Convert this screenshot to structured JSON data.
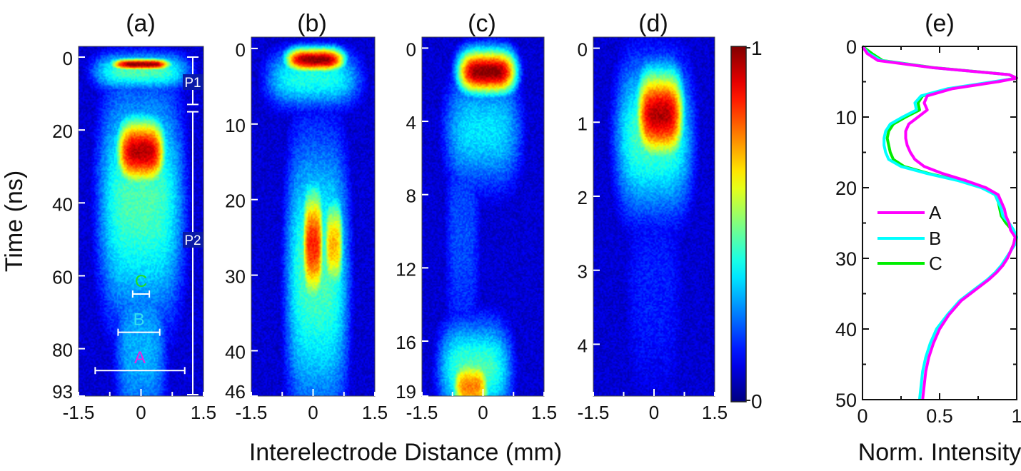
{
  "chart_data": [
    {
      "id": "a",
      "type": "heatmap",
      "panel_label": "(a)",
      "xlabel": "Interelectrode Distance (mm)",
      "ylabel": "Time (ns)",
      "xlim": [
        -1.5,
        1.5
      ],
      "ylim": [
        0,
        93
      ],
      "x_ticks": [
        "-1.5",
        "0",
        "1.5"
      ],
      "y_ticks": [
        {
          "value": 0,
          "label": "0"
        },
        {
          "value": 20,
          "label": "20"
        },
        {
          "value": 40,
          "label": "40"
        },
        {
          "value": 60,
          "label": "60"
        },
        {
          "value": 80,
          "label": "80"
        },
        {
          "value": 93,
          "label": "93"
        }
      ],
      "blobs": [
        {
          "x": 0.0,
          "y": 2,
          "sx": 0.55,
          "sy": 1.2,
          "v": 1.0
        },
        {
          "x": 0.0,
          "y": 4,
          "sx": 0.9,
          "sy": 4,
          "v": 0.45
        },
        {
          "x": 0.0,
          "y": 26,
          "sx": 0.45,
          "sy": 7,
          "v": 0.95
        },
        {
          "x": 0.0,
          "y": 40,
          "sx": 0.8,
          "sy": 25,
          "v": 0.45
        },
        {
          "x": 0.0,
          "y": 80,
          "sx": 0.5,
          "sy": 20,
          "v": 0.3
        }
      ],
      "phase_markers": [
        {
          "label": "P1",
          "t_start": 0,
          "t_end": 13
        },
        {
          "label": "P2",
          "t_start": 15,
          "t_end": 93
        }
      ],
      "regions": [
        {
          "label": "C",
          "x_start": -0.2,
          "x_end": 0.2,
          "t": 65,
          "color": "#22dd22"
        },
        {
          "label": "B",
          "x_start": -0.55,
          "x_end": 0.45,
          "t": 75.5,
          "color": "#33e0f0"
        },
        {
          "label": "A",
          "x_start": -1.1,
          "x_end": 1.05,
          "t": 86,
          "color": "#ee22dd"
        }
      ]
    },
    {
      "id": "b",
      "type": "heatmap",
      "panel_label": "(b)",
      "xlim": [
        -1.5,
        1.5
      ],
      "ylim": [
        -1.5,
        46
      ],
      "x_ticks": [
        "-1.5",
        "0",
        "1.5"
      ],
      "y_ticks": [
        {
          "value": 0,
          "label": "0"
        },
        {
          "value": 10,
          "label": "10"
        },
        {
          "value": 20,
          "label": "20"
        },
        {
          "value": 30,
          "label": "30"
        },
        {
          "value": 40,
          "label": "40"
        },
        {
          "value": 46,
          "label": "46"
        }
      ],
      "blobs": [
        {
          "x": 0.05,
          "y": 1.5,
          "sx": 0.55,
          "sy": 1.2,
          "v": 1.0
        },
        {
          "x": 0.0,
          "y": 4,
          "sx": 0.9,
          "sy": 3,
          "v": 0.4
        },
        {
          "x": 0.0,
          "y": 26,
          "sx": 0.2,
          "sy": 6,
          "v": 0.85
        },
        {
          "x": 0.5,
          "y": 26,
          "sx": 0.18,
          "sy": 5,
          "v": 0.7
        },
        {
          "x": 0.1,
          "y": 30,
          "sx": 0.6,
          "sy": 14,
          "v": 0.45
        }
      ]
    },
    {
      "id": "c",
      "type": "heatmap",
      "panel_label": "(c)",
      "xlim": [
        -1.5,
        1.5
      ],
      "ylim": [
        -0.6,
        19
      ],
      "x_ticks": [
        "-1.5",
        "0",
        "1.5"
      ],
      "y_ticks": [
        {
          "value": 0,
          "label": "0"
        },
        {
          "value": 4,
          "label": "4"
        },
        {
          "value": 8,
          "label": "8"
        },
        {
          "value": 12,
          "label": "12"
        },
        {
          "value": 16,
          "label": "16"
        },
        {
          "value": 19,
          "label": "19"
        }
      ],
      "blobs": [
        {
          "x": 0.1,
          "y": 1.3,
          "sx": 0.55,
          "sy": 0.9,
          "v": 1.0
        },
        {
          "x": 0.0,
          "y": 4.5,
          "sx": 0.75,
          "sy": 2.5,
          "v": 0.35
        },
        {
          "x": -0.3,
          "y": 18.5,
          "sx": 0.35,
          "sy": 1.2,
          "v": 0.75
        },
        {
          "x": -0.2,
          "y": 17.5,
          "sx": 0.7,
          "sy": 2,
          "v": 0.45
        },
        {
          "x": -0.5,
          "y": 10,
          "sx": 0.35,
          "sy": 6,
          "v": 0.2
        }
      ]
    },
    {
      "id": "d",
      "type": "heatmap",
      "panel_label": "(d)",
      "xlim": [
        -1.5,
        1.5
      ],
      "ylim": [
        -0.15,
        4.7
      ],
      "x_ticks": [
        "-1.5",
        "0",
        "1.5"
      ],
      "y_ticks": [
        {
          "value": 0,
          "label": "0"
        },
        {
          "value": 1,
          "label": "1"
        },
        {
          "value": 2,
          "label": "2"
        },
        {
          "value": 3,
          "label": "3"
        },
        {
          "value": 4,
          "label": "4"
        }
      ],
      "blobs": [
        {
          "x": 0.15,
          "y": 0.9,
          "sx": 0.45,
          "sy": 0.45,
          "v": 0.95
        },
        {
          "x": 0.0,
          "y": 1.2,
          "sx": 0.75,
          "sy": 0.8,
          "v": 0.45
        },
        {
          "x": 0.0,
          "y": 3.2,
          "sx": 0.6,
          "sy": 1.5,
          "v": 0.15
        }
      ]
    },
    {
      "id": "colorbar",
      "type": "heatmap",
      "colormap": "jet",
      "range": [
        0,
        1
      ],
      "tick_labels": [
        "1",
        "0"
      ]
    },
    {
      "id": "e",
      "type": "line",
      "panel_label": "(e)",
      "xlabel": "Norm. Intensity",
      "xlim": [
        0,
        1
      ],
      "ylim": [
        0,
        50
      ],
      "x_ticks": [
        "0",
        "0.5",
        "1"
      ],
      "y_ticks": [
        "0",
        "10",
        "20",
        "30",
        "40",
        "50"
      ],
      "legend": "center-left",
      "series": [
        {
          "name": "A",
          "color": "#ff00ff",
          "t": [
            0,
            1,
            2,
            3,
            4,
            4.5,
            5,
            6,
            7,
            8,
            9,
            10,
            11,
            12,
            13,
            14,
            15,
            16,
            17,
            18,
            19,
            20,
            21,
            22,
            23,
            24,
            25,
            26,
            27,
            28,
            29,
            30,
            31,
            32,
            33,
            34,
            35,
            36,
            38,
            40,
            42,
            44,
            46,
            48,
            50
          ],
          "val": [
            0.0,
            0.03,
            0.1,
            0.45,
            0.95,
            1.0,
            0.88,
            0.58,
            0.42,
            0.4,
            0.42,
            0.36,
            0.3,
            0.28,
            0.28,
            0.29,
            0.31,
            0.34,
            0.4,
            0.52,
            0.67,
            0.8,
            0.88,
            0.9,
            0.92,
            0.93,
            0.95,
            0.96,
            0.99,
            0.98,
            0.96,
            0.94,
            0.91,
            0.87,
            0.82,
            0.76,
            0.7,
            0.64,
            0.56,
            0.5,
            0.46,
            0.43,
            0.41,
            0.4,
            0.39
          ]
        },
        {
          "name": "B",
          "color": "#00ffff",
          "t": [
            0,
            1,
            2,
            3,
            4,
            4.5,
            5,
            6,
            7,
            8,
            9,
            10,
            11,
            12,
            13,
            14,
            15,
            16,
            17,
            18,
            19,
            20,
            21,
            22,
            23,
            24,
            25,
            26,
            27,
            28,
            29,
            30,
            31,
            32,
            33,
            34,
            35,
            36,
            38,
            40,
            42,
            44,
            46,
            48,
            50
          ],
          "val": [
            0.0,
            0.04,
            0.12,
            0.45,
            0.95,
            1.0,
            0.85,
            0.55,
            0.38,
            0.34,
            0.35,
            0.26,
            0.18,
            0.15,
            0.14,
            0.14,
            0.15,
            0.17,
            0.25,
            0.42,
            0.62,
            0.77,
            0.86,
            0.88,
            0.9,
            0.91,
            0.95,
            0.98,
            1.0,
            0.99,
            0.96,
            0.93,
            0.9,
            0.86,
            0.81,
            0.75,
            0.69,
            0.63,
            0.55,
            0.48,
            0.44,
            0.41,
            0.39,
            0.38,
            0.37
          ]
        },
        {
          "name": "C",
          "color": "#00ee00",
          "t": [
            0,
            1,
            2,
            3,
            4,
            4.5,
            5,
            6,
            7,
            8,
            9,
            10,
            11,
            12,
            13,
            14,
            15,
            16,
            17,
            18,
            19,
            20,
            21,
            22,
            23,
            24,
            25,
            26,
            27,
            28,
            29,
            30
          ],
          "val": [
            0.0,
            0.06,
            0.13,
            0.46,
            0.95,
            1.0,
            0.86,
            0.56,
            0.39,
            0.36,
            0.37,
            0.28,
            0.2,
            0.17,
            0.16,
            0.17,
            0.18,
            0.2,
            0.27,
            0.43,
            0.63,
            0.78,
            0.86,
            0.88,
            0.89,
            0.9,
            0.93,
            0.97,
            0.99,
            0.98,
            0.96,
            0.94
          ]
        }
      ]
    }
  ],
  "shared_xlabel": "Interelectrode Distance (mm)"
}
